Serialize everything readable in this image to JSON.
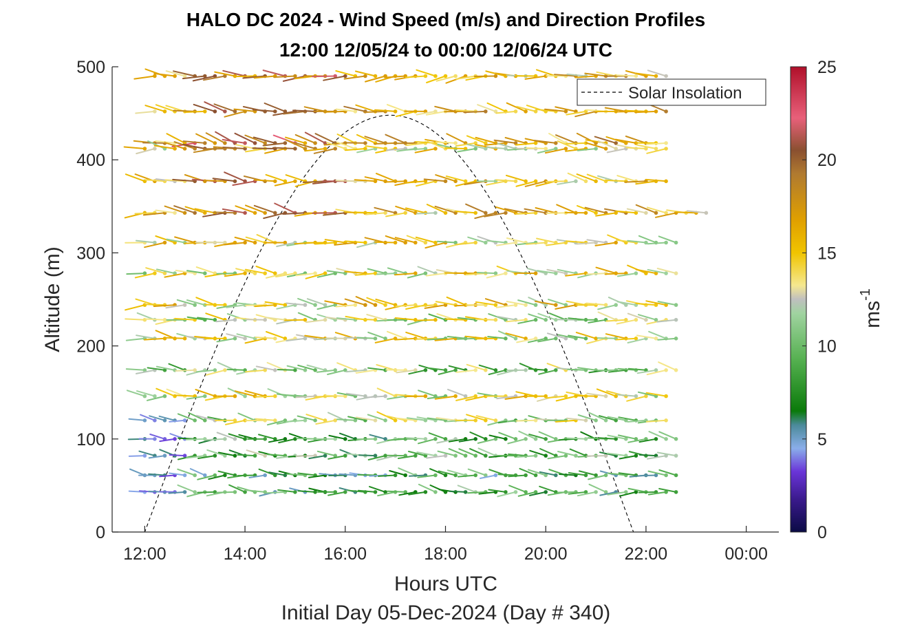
{
  "chart_data": {
    "type": "wind-barb-profile",
    "title": "HALO DC 2024 - Wind Speed (m/s) and Direction Profiles",
    "subtitle": "12:00 12/05/24 to 00:00 12/06/24  UTC",
    "xlabel": "Hours UTC",
    "x_sublabel": "Initial Day 05-Dec-2024 (Day # 340)",
    "ylabel": "Altitude (m)",
    "x_ticks": [
      "12:00",
      "14:00",
      "16:00",
      "18:00",
      "20:00",
      "22:00",
      "00:00"
    ],
    "x_tick_hours": [
      12,
      14,
      16,
      18,
      20,
      22,
      24
    ],
    "xlim_hours": [
      11.35,
      24.65
    ],
    "y_ticks": [
      "0",
      "100",
      "200",
      "300",
      "400",
      "500"
    ],
    "ylim": [
      0,
      500
    ],
    "colorbar": {
      "label": "ms",
      "label_exponent": "-1",
      "ticks": [
        "0",
        "5",
        "10",
        "15",
        "20",
        "25"
      ],
      "range": [
        0,
        25
      ],
      "colors": [
        "#0b0b45",
        "#3a1a8c",
        "#6a35d8",
        "#8aaeea",
        "#4b8a9a",
        "#0a7a0a",
        "#55b050",
        "#a0d3a0",
        "#bfbfbf",
        "#f5e890",
        "#f0c400",
        "#e0a000",
        "#b07a30",
        "#8a5030",
        "#e8607a",
        "#b0102a"
      ]
    },
    "legend": {
      "entries": [
        "Solar Insolation"
      ],
      "position": "top-right",
      "style": "dashed"
    },
    "solar_insolation": {
      "start_hour": 12.0,
      "peak_hour": 16.9,
      "end_hour": 21.75,
      "peak_altitude": 448
    },
    "wind_profiles": {
      "time_start_hour": 12.0,
      "time_step_hours": 0.2,
      "note": "arrow points toward direction of travel; rows are altitude levels, arrow runs are half-hour-ish steps",
      "levels": [
        {
          "altitude": 490,
          "start_hour": 12.1,
          "end_hour": 22.5,
          "speed_m_s": 15.5,
          "direction_deg": 90
        },
        {
          "altitude": 452,
          "start_hour": 12.1,
          "end_hour": 22.5,
          "speed_m_s": 16,
          "direction_deg": 95
        },
        {
          "altitude": 418,
          "start_hour": 12.1,
          "end_hour": 22.5,
          "speed_m_s": 16.5,
          "direction_deg": 100
        },
        {
          "altitude": 412,
          "start_hour": 11.8,
          "end_hour": 22.5,
          "speed_m_s": 14,
          "direction_deg": 95
        },
        {
          "altitude": 377,
          "start_hour": 11.8,
          "end_hour": 22.5,
          "speed_m_s": 15,
          "direction_deg": 95
        },
        {
          "altitude": 343,
          "start_hour": 11.8,
          "end_hour": 23.2,
          "speed_m_s": 15.5,
          "direction_deg": 95
        },
        {
          "altitude": 311,
          "start_hour": 11.8,
          "end_hour": 22.7,
          "speed_m_s": 14,
          "direction_deg": 95
        },
        {
          "altitude": 278,
          "start_hour": 11.8,
          "end_hour": 22.7,
          "speed_m_s": 13.5,
          "direction_deg": 95
        },
        {
          "altitude": 244,
          "start_hour": 11.8,
          "end_hour": 22.7,
          "speed_m_s": 14,
          "direction_deg": 95
        },
        {
          "altitude": 228,
          "start_hour": 11.8,
          "end_hour": 22.7,
          "speed_m_s": 12.5,
          "direction_deg": 95
        },
        {
          "altitude": 208,
          "start_hour": 11.8,
          "end_hour": 22.7,
          "speed_m_s": 13,
          "direction_deg": 95
        },
        {
          "altitude": 174,
          "start_hour": 11.8,
          "end_hour": 22.7,
          "speed_m_s": 11,
          "direction_deg": 95
        },
        {
          "altitude": 146,
          "start_hour": 11.8,
          "end_hour": 22.5,
          "speed_m_s": 13,
          "direction_deg": 95
        },
        {
          "altitude": 120,
          "start_hour": 11.8,
          "end_hour": 22.5,
          "speed_m_s": 12,
          "direction_deg": 95
        },
        {
          "altitude": 100,
          "start_hour": 11.8,
          "end_hour": 22.7,
          "speed_m_s": 9,
          "direction_deg": 95
        },
        {
          "altitude": 82,
          "start_hour": 11.8,
          "end_hour": 22.7,
          "speed_m_s": 9.5,
          "direction_deg": 95
        },
        {
          "altitude": 61,
          "start_hour": 11.8,
          "end_hour": 22.7,
          "speed_m_s": 8,
          "direction_deg": 95
        },
        {
          "altitude": 43,
          "start_hour": 11.8,
          "end_hour": 22.7,
          "speed_m_s": 8.5,
          "direction_deg": 95
        }
      ]
    }
  }
}
